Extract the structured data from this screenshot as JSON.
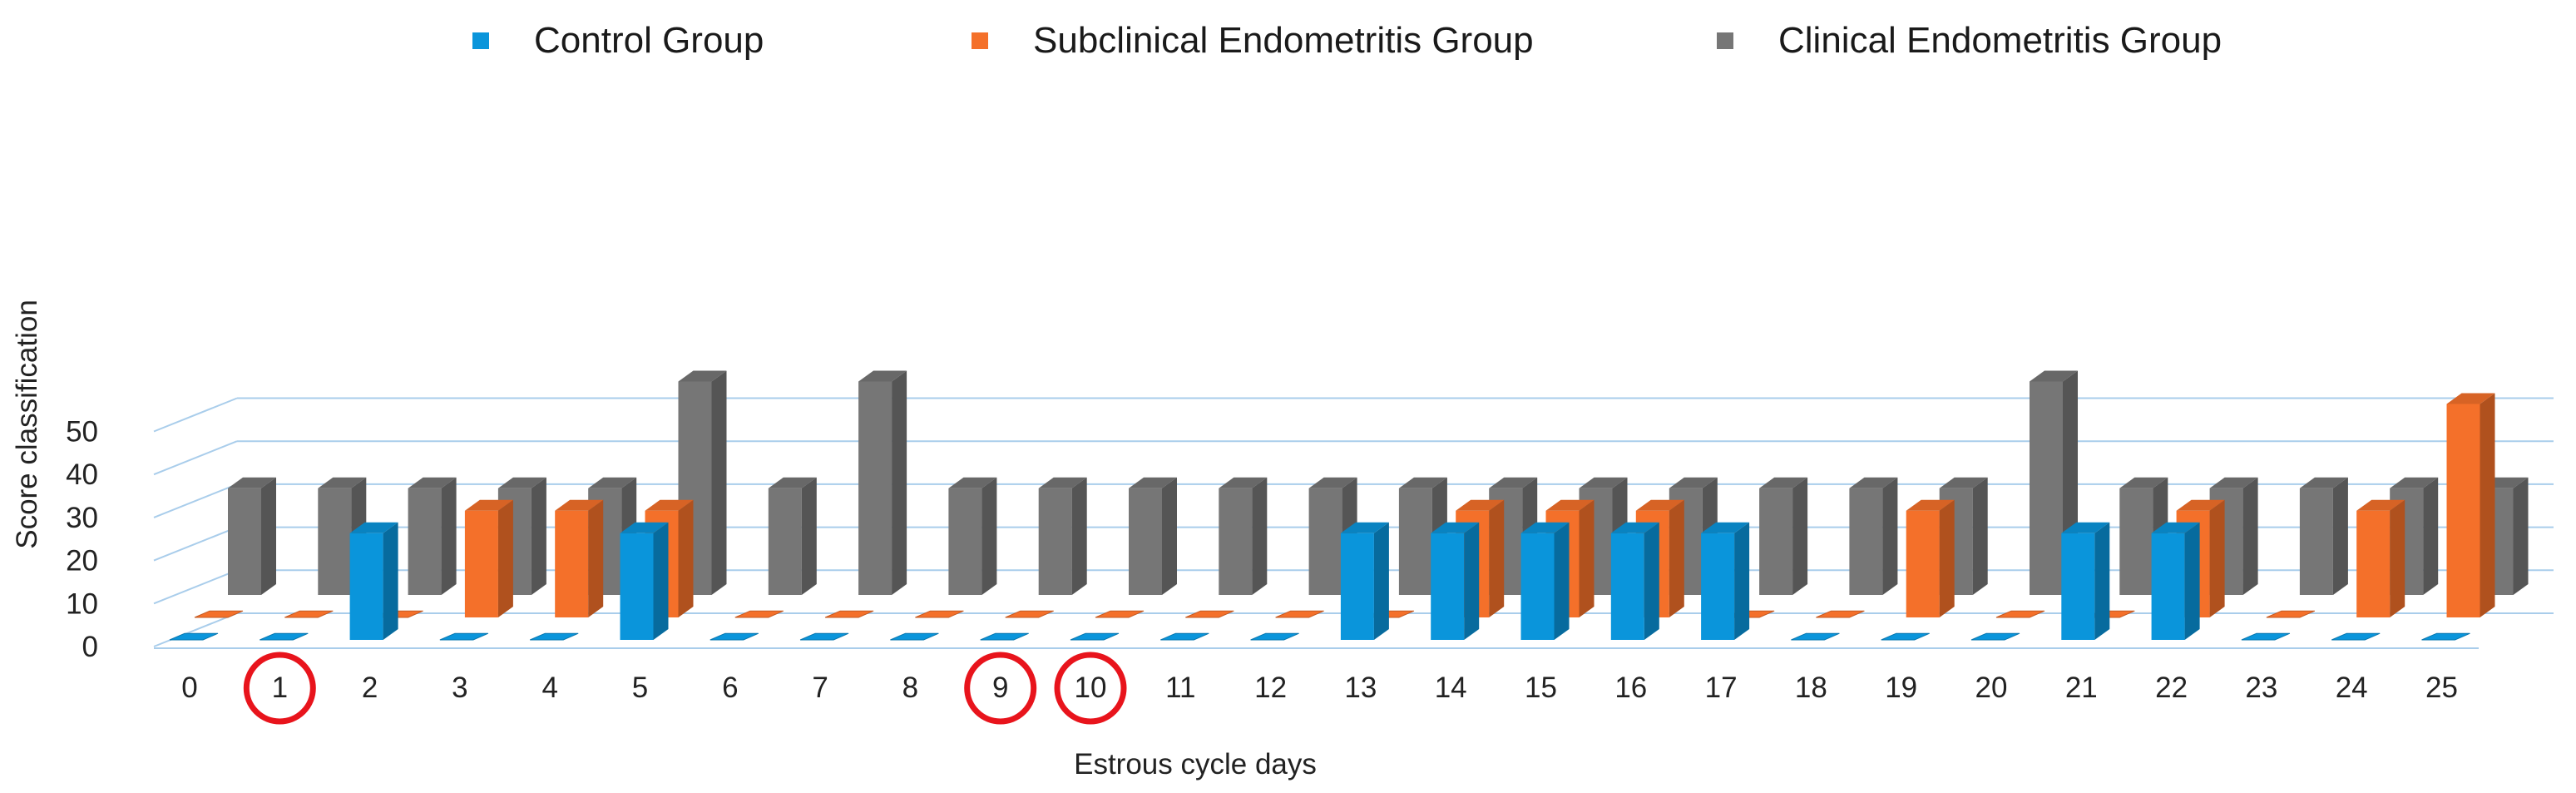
{
  "chart_data": {
    "type": "bar",
    "style": "3d-clustered-column",
    "xlabel": "Estrous cycle days",
    "ylabel": "Score classification",
    "ylim": [
      0,
      50
    ],
    "yticks": [
      "0",
      "10",
      "20",
      "30",
      "40",
      "50"
    ],
    "categories": [
      "0",
      "1",
      "2",
      "3",
      "4",
      "5",
      "6",
      "7",
      "8",
      "9",
      "10",
      "11",
      "12",
      "13",
      "14",
      "15",
      "16",
      "17",
      "18",
      "19",
      "20",
      "21",
      "22",
      "23",
      "24",
      "25"
    ],
    "highlighted_categories": [
      "1",
      "9",
      "10"
    ],
    "series": [
      {
        "name": "Control Group",
        "color": "#0A95DB",
        "values": [
          0,
          0,
          25,
          0,
          0,
          25,
          0,
          0,
          0,
          0,
          0,
          0,
          0,
          25,
          25,
          25,
          25,
          25,
          0,
          0,
          0,
          25,
          25,
          0,
          0,
          0
        ]
      },
      {
        "name": "Subclinical Endometritis Group",
        "color": "#F4702A",
        "values": [
          0,
          0,
          0,
          25,
          25,
          25,
          0,
          0,
          0,
          0,
          0,
          0,
          0,
          0,
          25,
          25,
          25,
          0,
          0,
          25,
          0,
          0,
          25,
          0,
          25,
          50
        ]
      },
      {
        "name": "Clinical Endometritis Group",
        "color": "#767676",
        "values": [
          25,
          25,
          25,
          25,
          25,
          50,
          25,
          50,
          25,
          25,
          25,
          25,
          25,
          25,
          25,
          25,
          25,
          25,
          25,
          25,
          50,
          25,
          25,
          25,
          25,
          25
        ]
      }
    ],
    "legend_position": "top-center",
    "grid": true
  },
  "highlight_color": "#E8141C"
}
